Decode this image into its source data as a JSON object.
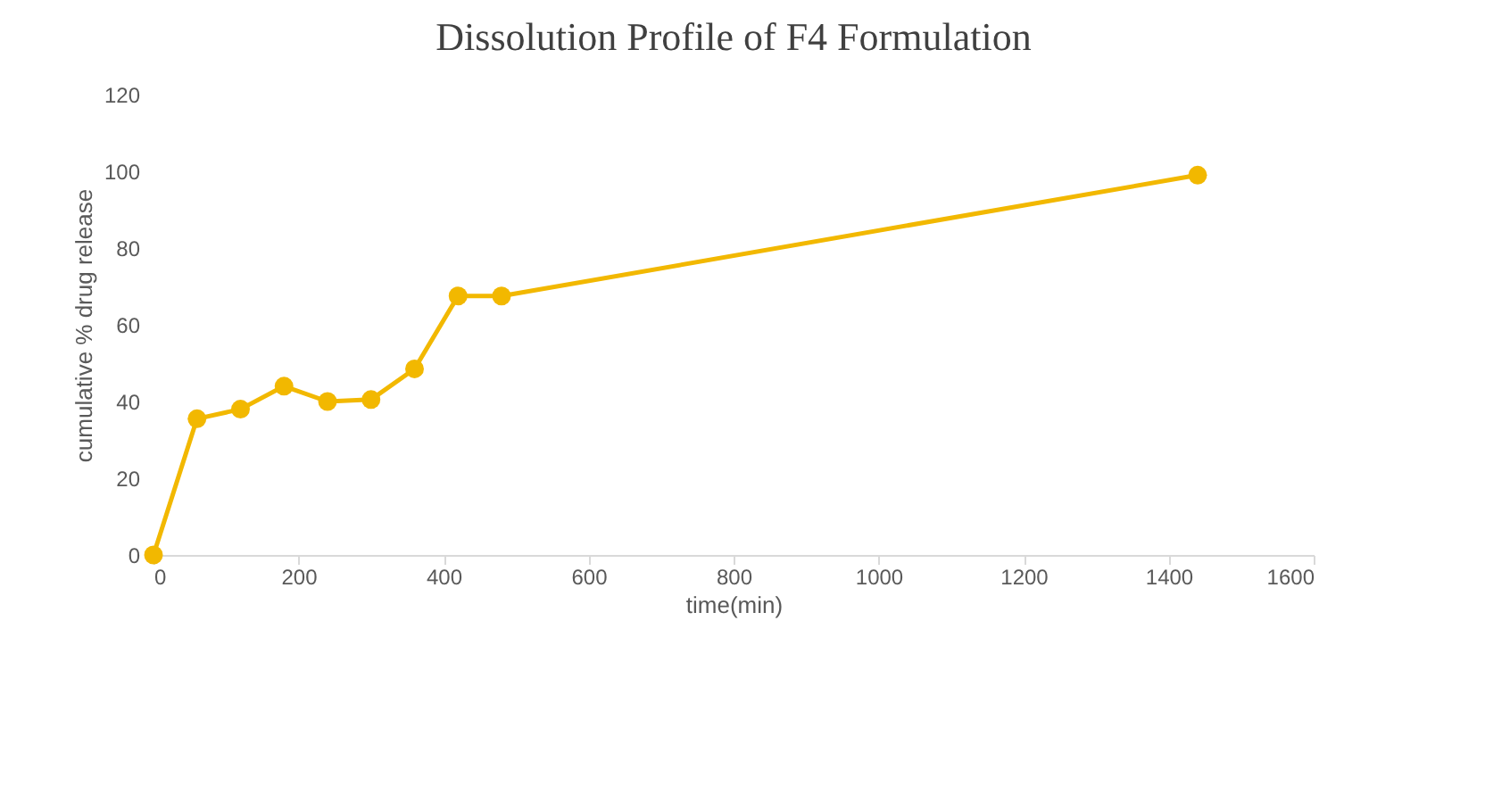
{
  "chart_data": {
    "type": "line",
    "title": "Dissolution  Profile of F4 Formulation",
    "xlabel": "time(min)",
    "ylabel": "cumulative % drug release",
    "x": [
      0,
      60,
      120,
      180,
      240,
      300,
      360,
      420,
      480,
      1440
    ],
    "series": [
      {
        "color": "#f2b800",
        "values": [
          0,
          35.5,
          38,
          44,
          40,
          40.5,
          48.5,
          67.5,
          67.5,
          99
        ]
      }
    ],
    "xlim": [
      0,
      1600
    ],
    "xticks": [
      0,
      200,
      400,
      600,
      800,
      1000,
      1200,
      1400,
      1600
    ],
    "ylim": [
      0,
      120
    ],
    "yticks": [
      0,
      20,
      40,
      60,
      80,
      100,
      120
    ],
    "grid": false,
    "legend": false,
    "marker": "circle",
    "line_style": "solid"
  }
}
